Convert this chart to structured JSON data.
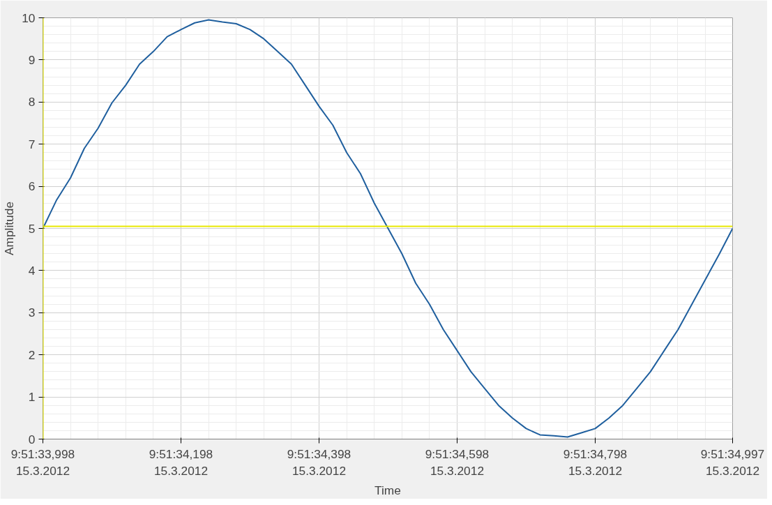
{
  "chart_data": {
    "type": "line",
    "xlabel": "Time",
    "ylabel": "Amplitude",
    "x": [
      "2012-03-15T09:51:33.998",
      "2012-03-15T09:51:34.018",
      "2012-03-15T09:51:34.038",
      "2012-03-15T09:51:34.058",
      "2012-03-15T09:51:34.078",
      "2012-03-15T09:51:34.098",
      "2012-03-15T09:51:34.118",
      "2012-03-15T09:51:34.138",
      "2012-03-15T09:51:34.158",
      "2012-03-15T09:51:34.178",
      "2012-03-15T09:51:34.198",
      "2012-03-15T09:51:34.218",
      "2012-03-15T09:51:34.238",
      "2012-03-15T09:51:34.258",
      "2012-03-15T09:51:34.278",
      "2012-03-15T09:51:34.298",
      "2012-03-15T09:51:34.318",
      "2012-03-15T09:51:34.338",
      "2012-03-15T09:51:34.358",
      "2012-03-15T09:51:34.378",
      "2012-03-15T09:51:34.398",
      "2012-03-15T09:51:34.418",
      "2012-03-15T09:51:34.438",
      "2012-03-15T09:51:34.458",
      "2012-03-15T09:51:34.478",
      "2012-03-15T09:51:34.498",
      "2012-03-15T09:51:34.518",
      "2012-03-15T09:51:34.538",
      "2012-03-15T09:51:34.558",
      "2012-03-15T09:51:34.578",
      "2012-03-15T09:51:34.598",
      "2012-03-15T09:51:34.618",
      "2012-03-15T09:51:34.638",
      "2012-03-15T09:51:34.658",
      "2012-03-15T09:51:34.678",
      "2012-03-15T09:51:34.698",
      "2012-03-15T09:51:34.718",
      "2012-03-15T09:51:34.738",
      "2012-03-15T09:51:34.758",
      "2012-03-15T09:51:34.778",
      "2012-03-15T09:51:34.798",
      "2012-03-15T09:51:34.818",
      "2012-03-15T09:51:34.838",
      "2012-03-15T09:51:34.858",
      "2012-03-15T09:51:34.878",
      "2012-03-15T09:51:34.898",
      "2012-03-15T09:51:34.918",
      "2012-03-15T09:51:34.938",
      "2012-03-15T09:51:34.958",
      "2012-03-15T09:51:34.978",
      "2012-03-15T09:51:34.997"
    ],
    "series": [
      {
        "color": "#1f5f9e",
        "values": [
          5.0,
          5.68,
          6.2,
          6.9,
          7.38,
          7.98,
          8.4,
          8.9,
          9.2,
          9.55,
          9.72,
          9.88,
          9.95,
          9.9,
          9.86,
          9.72,
          9.5,
          9.2,
          8.9,
          8.4,
          7.9,
          7.45,
          6.8,
          6.3,
          5.6,
          5.0,
          4.4,
          3.7,
          3.2,
          2.6,
          2.1,
          1.6,
          1.2,
          0.8,
          0.5,
          0.25,
          0.1,
          0.08,
          0.05,
          0.15,
          0.25,
          0.5,
          0.8,
          1.2,
          1.6,
          2.1,
          2.6,
          3.2,
          3.8,
          4.4,
          5.0
        ]
      }
    ],
    "xlim": [
      "2012-03-15T09:51:33.998",
      "2012-03-15T09:51:34.997"
    ],
    "ylim": [
      0,
      10
    ],
    "xticks": [
      {
        "value": "2012-03-15T09:51:33.998",
        "label": "9:51:33,998\n15.3.2012"
      },
      {
        "value": "2012-03-15T09:51:34.198",
        "label": "9:51:34,198\n15.3.2012"
      },
      {
        "value": "2012-03-15T09:51:34.398",
        "label": "9:51:34,398\n15.3.2012"
      },
      {
        "value": "2012-03-15T09:51:34.598",
        "label": "9:51:34,598\n15.3.2012"
      },
      {
        "value": "2012-03-15T09:51:34.798",
        "label": "9:51:34,798\n15.3.2012"
      },
      {
        "value": "2012-03-15T09:51:34.997",
        "label": "9:51:34,997\n15.3.2012"
      }
    ],
    "yticks": [
      0,
      1,
      2,
      3,
      4,
      5,
      6,
      7,
      8,
      9,
      10
    ],
    "ref_lines": [
      {
        "axis": "x",
        "value": "2012-03-15T09:51:33.998",
        "color": "#e8e800"
      },
      {
        "axis": "y",
        "value": 5.05,
        "color": "#e8e800"
      }
    ],
    "grid": true
  }
}
